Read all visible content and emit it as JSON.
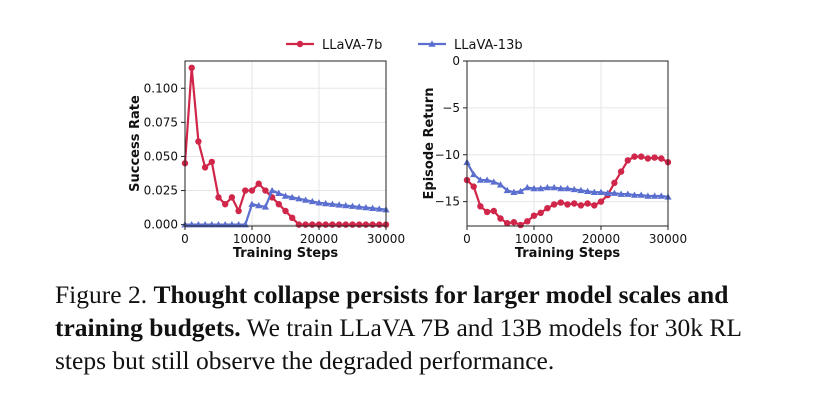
{
  "legend": [
    {
      "name": "LLaVA-7b",
      "color": "#d0264a",
      "marker": "circle"
    },
    {
      "name": "LLaVA-13b",
      "color": "#5a6fcf",
      "marker": "triangle"
    }
  ],
  "caption": {
    "label": "Figure 2.",
    "bold": "Thought collapse persists for larger model scales and training budgets.",
    "rest": "We train LLaVA 7B and 13B models for 30k RL steps but still observe the degraded performance."
  },
  "chart_data": [
    {
      "type": "line",
      "xlabel": "Training Steps",
      "ylabel": "Success Rate",
      "xlim": [
        0,
        30000
      ],
      "ylim": [
        -0.001,
        0.12
      ],
      "xticks": [
        0,
        10000,
        20000,
        30000
      ],
      "yticks": [
        0.0,
        0.025,
        0.05,
        0.075,
        0.1
      ],
      "ytick_labels": [
        "0.000",
        "0.025",
        "0.050",
        "0.075",
        "0.100"
      ],
      "grid": true,
      "series": [
        {
          "name": "LLaVA-7b",
          "x": [
            0,
            1000,
            2000,
            3000,
            4000,
            5000,
            6000,
            7000,
            8000,
            9000,
            10000,
            11000,
            12000,
            13000,
            14000,
            15000,
            16000,
            17000,
            18000,
            19000,
            20000,
            21000,
            22000,
            23000,
            24000,
            25000,
            26000,
            27000,
            28000,
            29000,
            30000
          ],
          "y": [
            0.045,
            0.115,
            0.061,
            0.042,
            0.046,
            0.02,
            0.015,
            0.02,
            0.01,
            0.025,
            0.025,
            0.03,
            0.025,
            0.02,
            0.015,
            0.01,
            0.005,
            0.0,
            0.0,
            0.0,
            0.0,
            0.0,
            0.0,
            0.0,
            0.0,
            0.0,
            0.0,
            0.0,
            0.0,
            0.0,
            0.0
          ]
        },
        {
          "name": "LLaVA-13b",
          "x": [
            0,
            1000,
            2000,
            3000,
            4000,
            5000,
            6000,
            7000,
            8000,
            9000,
            10000,
            11000,
            12000,
            13000,
            14000,
            15000,
            16000,
            17000,
            18000,
            19000,
            20000,
            21000,
            22000,
            23000,
            24000,
            25000,
            26000,
            27000,
            28000,
            29000,
            30000
          ],
          "y": [
            0.0,
            0.0,
            0.0,
            0.0,
            0.0,
            0.0,
            0.0,
            0.0,
            0.0,
            0.0,
            0.015,
            0.014,
            0.013,
            0.025,
            0.023,
            0.021,
            0.02,
            0.019,
            0.018,
            0.017,
            0.016,
            0.0155,
            0.015,
            0.0145,
            0.014,
            0.0135,
            0.013,
            0.0125,
            0.012,
            0.0115,
            0.011
          ]
        }
      ]
    },
    {
      "type": "line",
      "xlabel": "Training Steps",
      "ylabel": "Episode Return",
      "xlim": [
        0,
        30000
      ],
      "ylim": [
        -17.6,
        0
      ],
      "xticks": [
        0,
        10000,
        20000,
        30000
      ],
      "yticks": [
        0,
        -5,
        -10,
        -15
      ],
      "ytick_labels": [
        "0",
        "−5",
        "−10",
        "−15"
      ],
      "grid": true,
      "series": [
        {
          "name": "LLaVA-7b",
          "x": [
            0,
            1000,
            2000,
            3000,
            4000,
            5000,
            6000,
            7000,
            8000,
            9000,
            10000,
            11000,
            12000,
            13000,
            14000,
            15000,
            16000,
            17000,
            18000,
            19000,
            20000,
            21000,
            22000,
            23000,
            24000,
            25000,
            26000,
            27000,
            28000,
            29000,
            30000
          ],
          "y": [
            -12.7,
            -13.4,
            -15.5,
            -16.1,
            -16.0,
            -16.8,
            -17.3,
            -17.2,
            -17.5,
            -17.1,
            -16.5,
            -16.2,
            -15.7,
            -15.3,
            -15.1,
            -15.3,
            -15.2,
            -15.4,
            -15.2,
            -15.4,
            -15.0,
            -14.3,
            -13.0,
            -11.8,
            -10.6,
            -10.2,
            -10.2,
            -10.4,
            -10.3,
            -10.4,
            -10.8
          ]
        },
        {
          "name": "LLaVA-13b",
          "x": [
            0,
            1000,
            2000,
            3000,
            4000,
            5000,
            6000,
            7000,
            8000,
            9000,
            10000,
            11000,
            12000,
            13000,
            14000,
            15000,
            16000,
            17000,
            18000,
            19000,
            20000,
            21000,
            22000,
            23000,
            24000,
            25000,
            26000,
            27000,
            28000,
            29000,
            30000
          ],
          "y": [
            -10.8,
            -12.1,
            -12.7,
            -12.7,
            -12.9,
            -13.2,
            -13.8,
            -14.0,
            -13.9,
            -13.5,
            -13.6,
            -13.6,
            -13.5,
            -13.5,
            -13.6,
            -13.6,
            -13.7,
            -13.8,
            -13.9,
            -14.0,
            -14.0,
            -14.1,
            -14.1,
            -14.2,
            -14.2,
            -14.3,
            -14.3,
            -14.4,
            -14.4,
            -14.4,
            -14.5
          ]
        }
      ]
    }
  ]
}
